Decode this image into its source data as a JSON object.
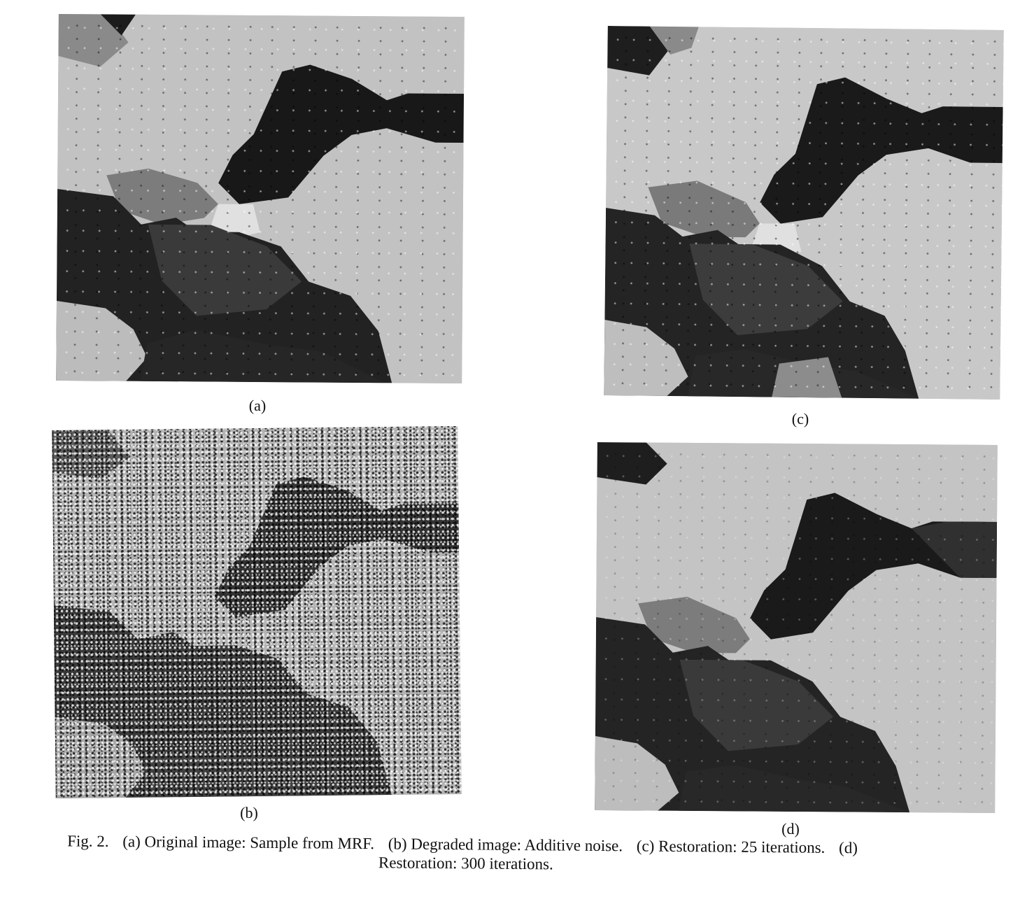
{
  "figure": {
    "panels": [
      {
        "id": "a",
        "label": "(a)"
      },
      {
        "id": "b",
        "label": "(b)"
      },
      {
        "id": "c",
        "label": "(c)"
      },
      {
        "id": "d",
        "label": "(d)"
      }
    ],
    "caption": {
      "fig_label": "Fig. 2.",
      "a": "(a) Original image: Sample from MRF.",
      "b": "(b) Degraded image: Additive noise.",
      "c": "(c) Restoration: 25 iterations.",
      "d_label": "(d)",
      "d_text": "Restoration: 300 iterations."
    },
    "colors": {
      "dark": "#1a1a1a",
      "mid_dark": "#3c3c3c",
      "mid": "#7a7a7a",
      "light": "#c4c4c4",
      "lightest": "#e2e2e2"
    }
  }
}
